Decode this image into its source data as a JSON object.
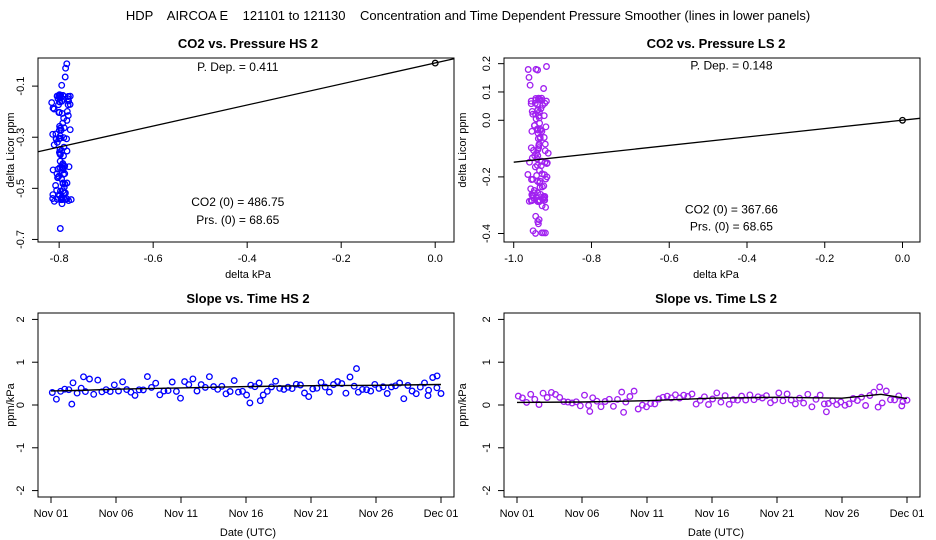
{
  "figure_title": "HDP    AIRCOA E    121101 to 121130    Concentration and Time Dependent Pressure Smoother (lines in lower panels)",
  "colors": {
    "hs": "#0000ff",
    "ls": "#a020f0",
    "line": "#000000"
  },
  "chart_data": [
    {
      "id": "p1",
      "type": "scatter",
      "title": "CO2 vs. Pressure HS 2",
      "xlabel": "delta kPa",
      "ylabel": "delta Licor ppm",
      "xlim": [
        -0.845,
        0.04
      ],
      "ylim": [
        -0.71,
        0.01
      ],
      "xticks": [
        -0.8,
        -0.6,
        -0.4,
        -0.2,
        0.0
      ],
      "xtick_labels": [
        "-0.8",
        "-0.6",
        "-0.4",
        "-0.2",
        "0.0"
      ],
      "yticks": [
        -0.7,
        -0.5,
        -0.3,
        -0.1
      ],
      "ytick_labels": [
        "-0.7",
        "-0.5",
        "-0.3",
        "-0.1"
      ],
      "color_key": "hs",
      "annotations": [
        {
          "text": "P. Dep. =  0.411",
          "x": -0.42,
          "y": -0.04
        },
        {
          "text": "CO2 (0) =  486.75",
          "x": -0.42,
          "y": -0.57
        },
        {
          "text": "Prs. (0) =  68.65",
          "x": -0.42,
          "y": -0.64
        }
      ],
      "fit_line": {
        "x": [
          -0.845,
          0.04
        ],
        "y": [
          -0.357,
          0.007
        ]
      },
      "ref_point": {
        "x": 0.0,
        "y": -0.01
      },
      "cluster": {
        "x_center": -0.795,
        "x_spread": 0.022,
        "y_min": -0.67,
        "y_max": -0.01,
        "n": 110,
        "seed": 11
      }
    },
    {
      "id": "p2",
      "type": "scatter",
      "title": "CO2 vs. Pressure LS 2",
      "xlabel": "delta kPa",
      "ylabel": "delta Licor ppm",
      "xlim": [
        -1.025,
        0.045
      ],
      "ylim": [
        -0.43,
        0.22
      ],
      "xticks": [
        -1.0,
        -0.8,
        -0.6,
        -0.4,
        -0.2,
        0.0
      ],
      "xtick_labels": [
        "-1.0",
        "-0.8",
        "-0.6",
        "-0.4",
        "-0.2",
        "0.0"
      ],
      "yticks": [
        -0.4,
        -0.2,
        0.0,
        0.1,
        0.2
      ],
      "ytick_labels": [
        "-0.4",
        "-0.2",
        "0.0",
        "0.1",
        "0.2"
      ],
      "color_key": "ls",
      "annotations": [
        {
          "text": "P. Dep. =  0.148",
          "x": -0.44,
          "y": 0.18
        },
        {
          "text": "CO2 (0) =  367.66",
          "x": -0.44,
          "y": -0.33
        },
        {
          "text": "Prs. (0) =  68.65",
          "x": -0.44,
          "y": -0.39
        }
      ],
      "fit_line": {
        "x": [
          -1.0,
          0.045
        ],
        "y": [
          -0.148,
          0.007
        ]
      },
      "ref_point": {
        "x": 0.0,
        "y": 0.0
      },
      "cluster": {
        "x_center": -0.935,
        "x_spread": 0.03,
        "y_min": -0.4,
        "y_max": 0.19,
        "n": 120,
        "seed": 23
      }
    },
    {
      "id": "p3",
      "type": "scatter",
      "title": "Slope vs. Time HS 2",
      "xlabel": "Date (UTC)",
      "ylabel": "ppm/kPa",
      "xlim": [
        -1.0,
        31.0
      ],
      "ylim": [
        -2.15,
        2.15
      ],
      "xticks": [
        0,
        5,
        10,
        15,
        20,
        25,
        30
      ],
      "xtick_labels": [
        "Nov 01",
        "Nov 06",
        "Nov 11",
        "Nov 16",
        "Nov 21",
        "Nov 26",
        "Dec 01"
      ],
      "yticks": [
        -2,
        -1,
        0,
        1,
        2
      ],
      "ytick_labels": [
        "-2",
        "-1",
        "0",
        "1",
        "2"
      ],
      "color_key": "hs",
      "smooth_line": {
        "x": [
          0,
          2,
          5,
          10,
          15,
          20,
          25,
          30
        ],
        "y": [
          0.33,
          0.34,
          0.37,
          0.4,
          0.43,
          0.45,
          0.46,
          0.48
        ]
      },
      "series": {
        "x_start": 0.1,
        "x_end": 30.0,
        "n": 95,
        "base": 0.4,
        "noise": 0.18,
        "seed": 37,
        "outliers": [
          [
            1.6,
            0.02
          ],
          [
            2.5,
            0.66
          ],
          [
            15.3,
            0.05
          ],
          [
            16.1,
            0.1
          ],
          [
            23.5,
            0.85
          ],
          [
            29.0,
            0.22
          ],
          [
            29.7,
            0.68
          ]
        ]
      }
    },
    {
      "id": "p4",
      "type": "scatter",
      "title": "Slope vs. Time LS 2",
      "xlabel": "Date (UTC)",
      "ylabel": "ppm/kPa",
      "xlim": [
        -1.0,
        31.0
      ],
      "ylim": [
        -2.15,
        2.15
      ],
      "xticks": [
        0,
        5,
        10,
        15,
        20,
        25,
        30
      ],
      "xtick_labels": [
        "Nov 01",
        "Nov 06",
        "Nov 11",
        "Nov 16",
        "Nov 21",
        "Nov 26",
        "Dec 01"
      ],
      "yticks": [
        -2,
        -1,
        0,
        1,
        2
      ],
      "ytick_labels": [
        "-2",
        "-1",
        "0",
        "1",
        "2"
      ],
      "color_key": "ls",
      "smooth_line": {
        "x": [
          0,
          5,
          10,
          15,
          20,
          25,
          28,
          30
        ],
        "y": [
          0.06,
          0.07,
          0.1,
          0.16,
          0.18,
          0.16,
          0.25,
          0.15
        ]
      },
      "series": {
        "x_start": 0.1,
        "x_end": 30.0,
        "n": 95,
        "base": 0.13,
        "noise": 0.15,
        "seed": 51,
        "outliers": [
          [
            5.6,
            -0.15
          ],
          [
            8.2,
            -0.17
          ],
          [
            23.8,
            -0.16
          ],
          [
            27.9,
            0.42
          ],
          [
            29.6,
            -0.02
          ]
        ]
      }
    }
  ]
}
